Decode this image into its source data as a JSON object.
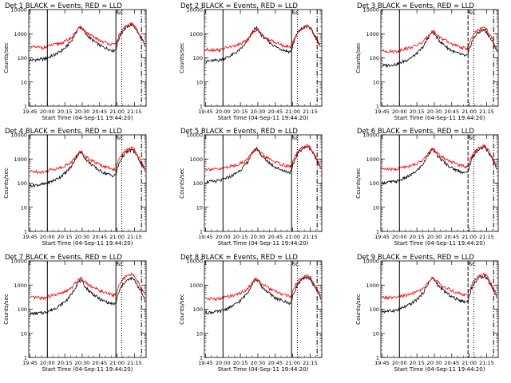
{
  "chart_data": {
    "type": "line",
    "layout": {
      "rows": 3,
      "cols": 3
    },
    "x_ticks": [
      "19:45",
      "20:00",
      "20:15",
      "20:30",
      "20:45",
      "21:00",
      "21:15"
    ],
    "x_tick_minutes": [
      0,
      15,
      30,
      45,
      60,
      75,
      90
    ],
    "xlim_minutes": [
      -1,
      100
    ],
    "y_scale": "log",
    "ylim": [
      1,
      10000
    ],
    "y_ticks": [
      "1",
      "10",
      "100",
      "1000",
      "10000"
    ],
    "xlabel": "Start Time (04-Sep-11 19:44:20)",
    "ylabel": "Counts/sec",
    "series_colors": {
      "events": "#000000",
      "lld": "#ff0000"
    },
    "vertical_markers": {
      "solid": [
        15,
        74
      ],
      "dotted": 79,
      "dashdot": 96
    },
    "marker_glyph": "SC",
    "shape_x": [
      0,
      3,
      7,
      10,
      13,
      15,
      18,
      22,
      26,
      30,
      33,
      36,
      38,
      40,
      42,
      44,
      46,
      48,
      50,
      52,
      54,
      56,
      58,
      60,
      63,
      66,
      69,
      72,
      74,
      76,
      78,
      80,
      82,
      85,
      88,
      90,
      93,
      96,
      99
    ],
    "shape_events": [
      80,
      82,
      85,
      88,
      92,
      100,
      115,
      140,
      180,
      250,
      350,
      520,
      800,
      1200,
      1700,
      1900,
      1400,
      1000,
      800,
      650,
      550,
      450,
      390,
      330,
      280,
      250,
      220,
      200,
      220,
      500,
      900,
      1300,
      1700,
      2100,
      2400,
      1900,
      1100,
      600,
      300
    ],
    "shape_lld": [
      280,
      275,
      270,
      265,
      270,
      300,
      330,
      360,
      400,
      470,
      560,
      700,
      920,
      1250,
      1650,
      1850,
      1500,
      1200,
      1000,
      860,
      760,
      670,
      600,
      540,
      470,
      420,
      380,
      350,
      360,
      700,
      1100,
      1500,
      1900,
      2300,
      2600,
      2100,
      1200,
      650,
      320
    ],
    "panels": [
      {
        "title": "Det  1  BLACK = Events, RED = LLD",
        "events_scale": 1.0,
        "lld_scale": 1.0,
        "first_marker": "solid"
      },
      {
        "title": "Det  2  BLACK = Events, RED = LLD",
        "events_scale": 0.9,
        "lld_scale": 0.8,
        "first_marker": "solid"
      },
      {
        "title": "Det  3  BLACK = Events, RED = LLD",
        "events_scale": 0.6,
        "lld_scale": 0.7,
        "first_marker": "dashed"
      },
      {
        "title": "Det  4  BLACK = Events, RED = LLD",
        "events_scale": 1.0,
        "lld_scale": 1.1,
        "first_marker": "solid"
      },
      {
        "title": "Det  5  BLACK = Events, RED = LLD",
        "events_scale": 1.4,
        "lld_scale": 1.4,
        "first_marker": "solid"
      },
      {
        "title": "Det  6  BLACK = Events, RED = LLD",
        "events_scale": 1.3,
        "lld_scale": 1.4,
        "first_marker": "dashed"
      },
      {
        "title": "Det  7  BLACK = Events, RED = LLD",
        "events_scale": 0.8,
        "lld_scale": 1.1,
        "first_marker": "solid"
      },
      {
        "title": "Det  8  BLACK = Events, RED = LLD",
        "events_scale": 0.9,
        "lld_scale": 1.0,
        "first_marker": "solid"
      },
      {
        "title": "Det  9  BLACK = Events, RED = LLD",
        "events_scale": 1.0,
        "lld_scale": 1.1,
        "first_marker": "dashed"
      }
    ]
  }
}
